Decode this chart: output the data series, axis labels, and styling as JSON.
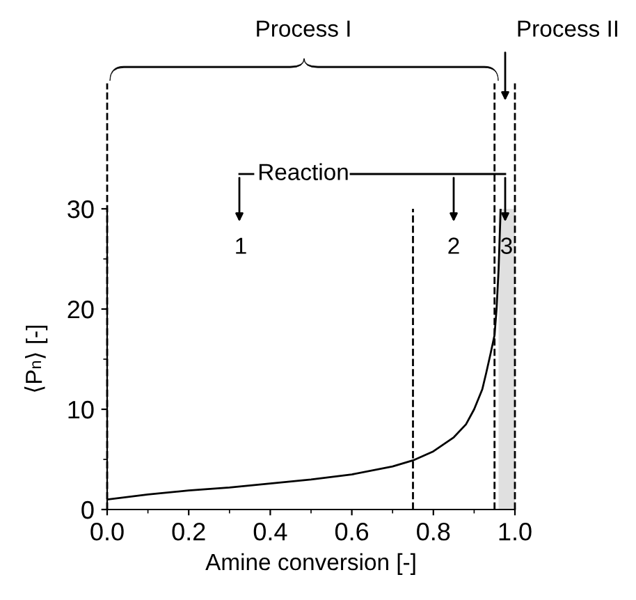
{
  "chart_data": {
    "type": "line",
    "xlabel": "Amine conversion [-]",
    "ylabel": "⟨P$_{n}$⟩ [-]",
    "series": [
      {
        "color": "#000000",
        "x": [
          0.0,
          0.1,
          0.2,
          0.3,
          0.4,
          0.5,
          0.6,
          0.7,
          0.75,
          0.8,
          0.85,
          0.88,
          0.9,
          0.92,
          0.93,
          0.94,
          0.95,
          0.955,
          0.96,
          0.965
        ],
        "values": [
          1.0,
          1.5,
          1.9,
          2.2,
          2.6,
          3.0,
          3.5,
          4.3,
          4.9,
          5.8,
          7.2,
          8.5,
          10.0,
          12.0,
          13.7,
          15.5,
          17.4,
          20.0,
          24.0,
          30.0
        ]
      }
    ],
    "xlim": [
      0.0,
      1.0
    ],
    "xticks": [
      {
        "value": 0.0,
        "label": "0.0"
      },
      0.2,
      0.4,
      0.6,
      0.8,
      {
        "value": 1.0,
        "label": "1.0"
      }
    ],
    "ylim": [
      0,
      30
    ],
    "yticks": [
      0,
      10,
      20,
      30
    ],
    "ref_lines": [
      {
        "axis": "x",
        "value": 0.0,
        "line_style": "dashed"
      },
      {
        "axis": "x",
        "value": 0.75,
        "line_style": "dashed"
      },
      {
        "axis": "x",
        "value": 0.95,
        "line_style": "dashed"
      },
      {
        "axis": "x",
        "value": 1.0,
        "line_style": "dashed"
      }
    ],
    "bands": [
      {
        "axis": "x",
        "from": 0.96,
        "to": 1.0,
        "color": "#e0e0e0"
      }
    ],
    "annotations": [
      "Process I",
      "Process II",
      "Reaction",
      "1",
      "2",
      "3"
    ],
    "grid": false,
    "marker": "none",
    "line_style": "solid"
  }
}
